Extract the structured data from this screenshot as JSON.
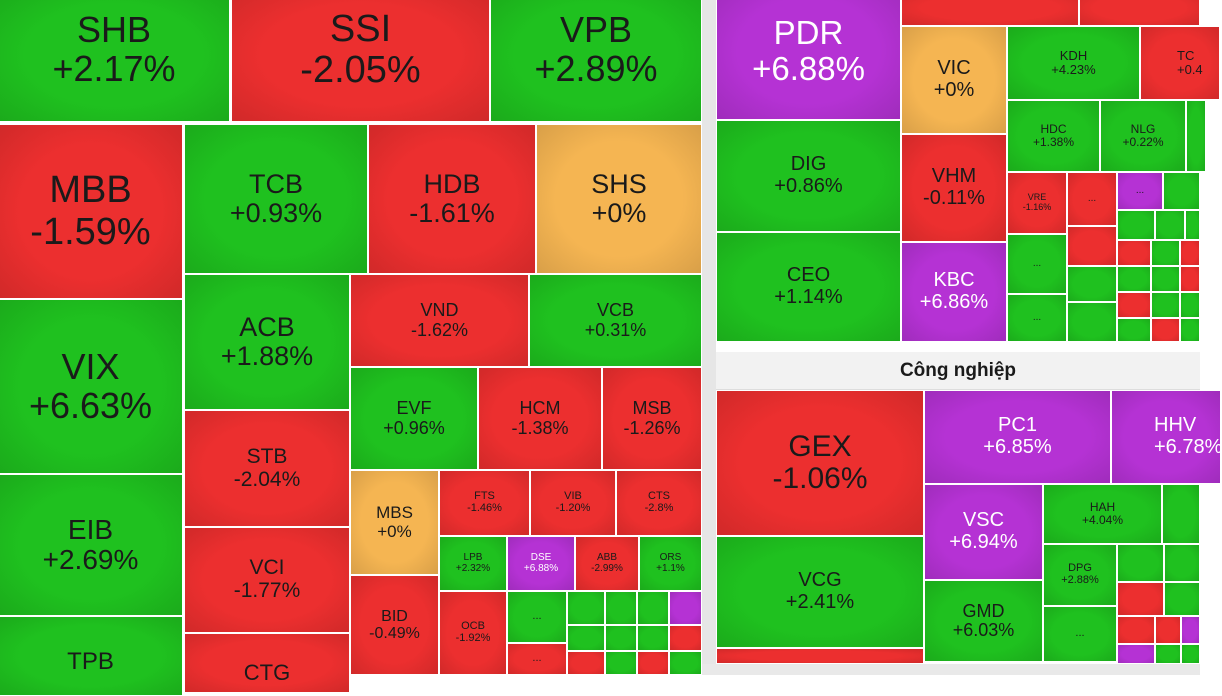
{
  "colors": {
    "up": "#1fc11f",
    "down": "#ec2f2f",
    "flat": "#f5b552",
    "ceiling": "#b532d4"
  },
  "ellipsis": "...",
  "left_panel": {
    "tiles": [
      {
        "id": "shb",
        "symbol": "SHB",
        "change": "+2.17%",
        "status": "up"
      },
      {
        "id": "ssi",
        "symbol": "SSI",
        "change": "-2.05%",
        "status": "down"
      },
      {
        "id": "vpb",
        "symbol": "VPB",
        "change": "+2.89%",
        "status": "up"
      },
      {
        "id": "mbb",
        "symbol": "MBB",
        "change": "-1.59%",
        "status": "down"
      },
      {
        "id": "tcb",
        "symbol": "TCB",
        "change": "+0.93%",
        "status": "up"
      },
      {
        "id": "hdb",
        "symbol": "HDB",
        "change": "-1.61%",
        "status": "down"
      },
      {
        "id": "shs",
        "symbol": "SHS",
        "change": "+0%",
        "status": "flat"
      },
      {
        "id": "vix",
        "symbol": "VIX",
        "change": "+6.63%",
        "status": "up"
      },
      {
        "id": "acb",
        "symbol": "ACB",
        "change": "+1.88%",
        "status": "up"
      },
      {
        "id": "vnd",
        "symbol": "VND",
        "change": "-1.62%",
        "status": "down"
      },
      {
        "id": "vcb",
        "symbol": "VCB",
        "change": "+0.31%",
        "status": "up"
      },
      {
        "id": "eib",
        "symbol": "EIB",
        "change": "+2.69%",
        "status": "up"
      },
      {
        "id": "stb",
        "symbol": "STB",
        "change": "-2.04%",
        "status": "down"
      },
      {
        "id": "evf",
        "symbol": "EVF",
        "change": "+0.96%",
        "status": "up"
      },
      {
        "id": "hcm",
        "symbol": "HCM",
        "change": "-1.38%",
        "status": "down"
      },
      {
        "id": "msb",
        "symbol": "MSB",
        "change": "-1.26%",
        "status": "down"
      },
      {
        "id": "mbs",
        "symbol": "MBS",
        "change": "+0%",
        "status": "flat"
      },
      {
        "id": "fts",
        "symbol": "FTS",
        "change": "-1.46%",
        "status": "down"
      },
      {
        "id": "vib",
        "symbol": "VIB",
        "change": "-1.20%",
        "status": "down"
      },
      {
        "id": "cts",
        "symbol": "CTS",
        "change": "-2.8%",
        "status": "down"
      },
      {
        "id": "vci",
        "symbol": "VCI",
        "change": "-1.77%",
        "status": "down"
      },
      {
        "id": "lpb",
        "symbol": "LPB",
        "change": "+2.32%",
        "status": "up"
      },
      {
        "id": "dse",
        "symbol": "DSE",
        "change": "+6.88%",
        "status": "ceiling"
      },
      {
        "id": "abb",
        "symbol": "ABB",
        "change": "-2.99%",
        "status": "down"
      },
      {
        "id": "ors",
        "symbol": "ORS",
        "change": "+1.1%",
        "status": "up"
      },
      {
        "id": "bid",
        "symbol": "BID",
        "change": "-0.49%",
        "status": "down"
      },
      {
        "id": "ocb",
        "symbol": "OCB",
        "change": "-1.92%",
        "status": "down"
      },
      {
        "id": "tpb",
        "symbol": "TPB",
        "change": "",
        "status": "up"
      },
      {
        "id": "ctg",
        "symbol": "CTG",
        "change": "",
        "status": "down"
      }
    ]
  },
  "right_top": {
    "tiles": [
      {
        "id": "pdr",
        "symbol": "PDR",
        "change": "+6.88%",
        "status": "ceiling"
      },
      {
        "id": "vic",
        "symbol": "VIC",
        "change": "+0%",
        "status": "flat"
      },
      {
        "id": "kdh",
        "symbol": "KDH",
        "change": "+4.23%",
        "status": "up"
      },
      {
        "id": "tch",
        "symbol": "TC",
        "change": "+0.4",
        "status": "down"
      },
      {
        "id": "hdc",
        "symbol": "HDC",
        "change": "+1.38%",
        "status": "up"
      },
      {
        "id": "nlg",
        "symbol": "NLG",
        "change": "+0.22%",
        "status": "up"
      },
      {
        "id": "dig",
        "symbol": "DIG",
        "change": "+0.86%",
        "status": "up"
      },
      {
        "id": "vhm",
        "symbol": "VHM",
        "change": "-0.11%",
        "status": "down"
      },
      {
        "id": "vre",
        "symbol": "VRE",
        "change": "-1.16%",
        "status": "down"
      },
      {
        "id": "ceo",
        "symbol": "CEO",
        "change": "+1.14%",
        "status": "up"
      },
      {
        "id": "kbc",
        "symbol": "KBC",
        "change": "+6.86%",
        "status": "ceiling"
      }
    ]
  },
  "right_bottom": {
    "sector_title": "Công nghiệp",
    "tiles": [
      {
        "id": "gex",
        "symbol": "GEX",
        "change": "-1.06%",
        "status": "down"
      },
      {
        "id": "pc1",
        "symbol": "PC1",
        "change": "+6.85%",
        "status": "ceiling"
      },
      {
        "id": "hhv",
        "symbol": "HHV",
        "change": "+6.78%",
        "status": "ceiling"
      },
      {
        "id": "vsc",
        "symbol": "VSC",
        "change": "+6.94%",
        "status": "ceiling"
      },
      {
        "id": "hah",
        "symbol": "HAH",
        "change": "+4.04%",
        "status": "up"
      },
      {
        "id": "dpg",
        "symbol": "DPG",
        "change": "+2.88%",
        "status": "up"
      },
      {
        "id": "vcg",
        "symbol": "VCG",
        "change": "+2.41%",
        "status": "up"
      },
      {
        "id": "gmd",
        "symbol": "GMD",
        "change": "+6.03%",
        "status": "up"
      }
    ]
  }
}
